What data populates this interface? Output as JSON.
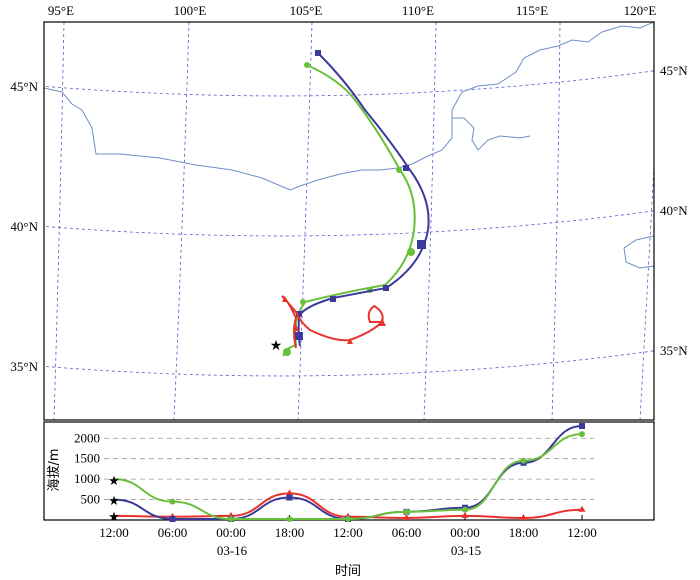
{
  "map": {
    "lon_labels": [
      "95°E",
      "100°E",
      "105°E",
      "110°E",
      "115°E",
      "120°E"
    ],
    "lat_labels": [
      "45°N",
      "40°N",
      "35°N"
    ],
    "source_label": "★"
  },
  "height_panel": {
    "ylabel": "海拔/m",
    "y_ticks": [
      "2000",
      "1500",
      "1000",
      "500"
    ],
    "x_ticks": [
      "12:00",
      "06:00",
      "00:00",
      "18:00",
      "12:00",
      "06:00",
      "00:00",
      "18:00",
      "12:00"
    ],
    "date_labels": [
      "03-16",
      "03-15"
    ],
    "xlabel": "时间"
  },
  "chart_data": {
    "type": "line",
    "xlabel": "时间",
    "ylabel": "海拔/m",
    "x": [
      "03-16 12:00",
      "03-16 06:00",
      "03-16 00:00",
      "03-15 18:00",
      "03-15 12:00",
      "03-15 06:00",
      "03-15 00:00",
      "03-14 18:00",
      "03-14 12:00"
    ],
    "ylim": [
      0,
      2300
    ],
    "series": [
      {
        "color": "#e8322c",
        "values": [
          100,
          80,
          100,
          650,
          80,
          50,
          100,
          50,
          250
        ]
      },
      {
        "color": "#3a3a9a",
        "values": [
          500,
          0,
          0,
          550,
          0,
          200,
          300,
          1400,
          2300
        ]
      },
      {
        "color": "#6abf3a",
        "values": [
          1000,
          450,
          0,
          0,
          0,
          200,
          250,
          1450,
          2100
        ]
      }
    ]
  },
  "colors": {
    "red": "#e8322c",
    "blue": "#3a3a9a",
    "green": "#6abf3a",
    "coast": "#6e8fc6",
    "grid": "#5a5ad0"
  }
}
